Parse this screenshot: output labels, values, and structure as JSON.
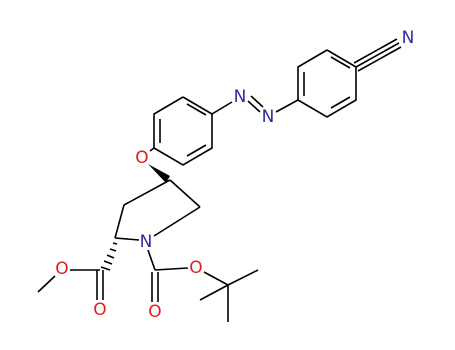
{
  "molecule": {
    "atom_labels": [
      "N",
      "N",
      "N",
      "O",
      "N",
      "O",
      "O",
      "O",
      "O"
    ]
  }
}
